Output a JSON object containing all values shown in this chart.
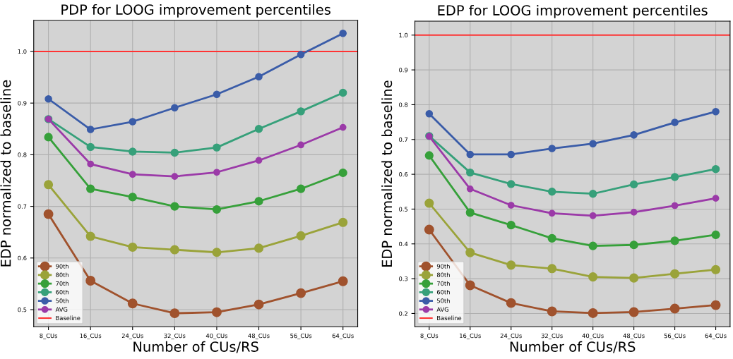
{
  "chart_data": [
    {
      "type": "line",
      "title": "PDP for LOOG improvement percentiles",
      "xlabel": "Number of CUs/RS",
      "ylabel": "EDP normalized to baseline",
      "categories": [
        "8_CUs",
        "16_CUs",
        "24_CUs",
        "32_CUs",
        "40_CUs",
        "48_CUs",
        "56_CUs",
        "64_CUs"
      ],
      "series": [
        {
          "name": "90th",
          "color": "#a0522d",
          "values": [
            0.685,
            0.556,
            0.512,
            0.493,
            0.495,
            0.51,
            0.532,
            0.555
          ]
        },
        {
          "name": "80th",
          "color": "#9aa33a",
          "values": [
            0.742,
            0.642,
            0.621,
            0.616,
            0.611,
            0.619,
            0.643,
            0.669
          ]
        },
        {
          "name": "70th",
          "color": "#36a03a",
          "values": [
            0.834,
            0.734,
            0.718,
            0.7,
            0.694,
            0.71,
            0.734,
            0.765
          ]
        },
        {
          "name": "60th",
          "color": "#36a07a",
          "values": [
            0.869,
            0.815,
            0.806,
            0.804,
            0.814,
            0.85,
            0.884,
            0.92
          ]
        },
        {
          "name": "50th",
          "color": "#3a5ca8",
          "values": [
            0.908,
            0.849,
            0.864,
            0.891,
            0.917,
            0.951,
            0.994,
            1.035
          ]
        },
        {
          "name": "AVG",
          "color": "#9b3aa8",
          "values": [
            0.869,
            0.782,
            0.762,
            0.758,
            0.766,
            0.789,
            0.819,
            0.853
          ]
        }
      ],
      "ref_lines": [
        {
          "axis": "y",
          "value": 1.0,
          "label": "Baseline",
          "color": "#ff3333"
        }
      ],
      "ylim": [
        0.467,
        1.06
      ],
      "yticks": [
        0.5,
        0.6,
        0.7,
        0.8,
        0.9,
        {
          "value": 1.0,
          "label": "1.0"
        }
      ],
      "marker": "circle",
      "grid": true,
      "legend": "bottom left"
    },
    {
      "type": "line",
      "title": "EDP for LOOG improvement percentiles",
      "xlabel": "Number of CUs/RS",
      "ylabel": "EDP normalized to baseline",
      "categories": [
        "8_CUs",
        "16_CUs",
        "24_CUs",
        "32_CUs",
        "40_CUs",
        "48_CUs",
        "56_CUs",
        "64_CUs"
      ],
      "series": [
        {
          "name": "90th",
          "color": "#a0522d",
          "values": [
            0.441,
            0.281,
            0.23,
            0.206,
            0.201,
            0.204,
            0.214,
            0.224
          ]
        },
        {
          "name": "80th",
          "color": "#9aa33a",
          "values": [
            0.517,
            0.375,
            0.339,
            0.329,
            0.305,
            0.302,
            0.314,
            0.326
          ]
        },
        {
          "name": "70th",
          "color": "#36a03a",
          "values": [
            0.654,
            0.49,
            0.454,
            0.416,
            0.394,
            0.397,
            0.409,
            0.426
          ]
        },
        {
          "name": "60th",
          "color": "#36a07a",
          "values": [
            0.71,
            0.605,
            0.572,
            0.55,
            0.544,
            0.571,
            0.592,
            0.615
          ]
        },
        {
          "name": "50th",
          "color": "#3a5ca8",
          "values": [
            0.774,
            0.657,
            0.657,
            0.674,
            0.688,
            0.713,
            0.749,
            0.78
          ]
        },
        {
          "name": "AVG",
          "color": "#9b3aa8",
          "values": [
            0.709,
            0.558,
            0.511,
            0.488,
            0.481,
            0.491,
            0.51,
            0.531
          ]
        }
      ],
      "ref_lines": [
        {
          "axis": "y",
          "value": 1.0,
          "label": "Baseline",
          "color": "#ff3333"
        }
      ],
      "ylim": [
        0.162,
        1.04
      ],
      "yticks": [
        0.2,
        0.3,
        0.4,
        0.5,
        0.6,
        0.7,
        0.8,
        0.9,
        {
          "value": 1.0,
          "label": "1.0"
        }
      ],
      "marker": "circle",
      "grid": true,
      "legend": "bottom left"
    }
  ]
}
